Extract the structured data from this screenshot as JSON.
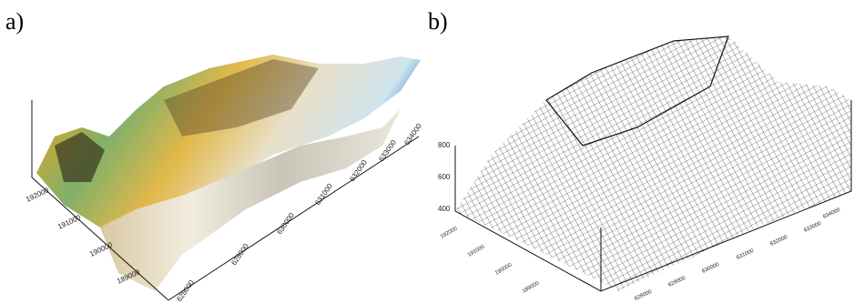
{
  "panels": [
    {
      "label": "a)",
      "y_ticks": [
        "189000",
        "190000",
        "191000",
        "192000"
      ],
      "x_ticks": [
        "628000",
        "629000",
        "630000",
        "631000",
        "632000",
        "633000",
        "634000"
      ]
    },
    {
      "label": "b)",
      "z_ticks": [
        "800",
        "600",
        "400"
      ],
      "y_ticks": [
        "189000",
        "190000",
        "191000",
        "192000"
      ],
      "x_ticks": [
        "628000",
        "629000",
        "630000",
        "631000",
        "632000",
        "633000",
        "634000"
      ]
    }
  ]
}
